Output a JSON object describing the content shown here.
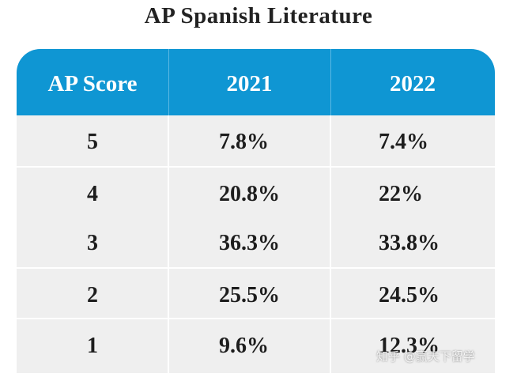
{
  "title": "AP Spanish Literature",
  "table": {
    "headers": [
      "AP Score",
      "2021",
      "2022"
    ],
    "rows": [
      {
        "score": "5",
        "y2021": "7.8%",
        "y2022": "7.4%"
      },
      {
        "score": "4",
        "y2021": "20.8%",
        "y2022": "22%"
      },
      {
        "score": "3",
        "y2021": "36.3%",
        "y2022": "33.8%"
      },
      {
        "score": "2",
        "y2021": "25.5%",
        "y2022": "24.5%"
      },
      {
        "score": "1",
        "y2021": "9.6%",
        "y2022": "12.3%"
      }
    ]
  },
  "watermark": "知乎 @赢天下留学",
  "colors": {
    "header_bg": "#0f96d3",
    "row_bg": "#efefef",
    "text": "#1d1d1d"
  }
}
